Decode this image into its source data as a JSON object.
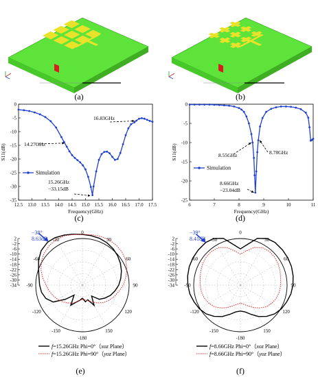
{
  "labels": {
    "a": "(a)",
    "b": "(b)",
    "c": "(c)",
    "d": "(d)",
    "e": "(e)",
    "f": "(f)"
  },
  "colors": {
    "substrate": "#5ee33a",
    "substrate_side": "#3fbf22",
    "patch": "#e8e22a",
    "feed": "#d61e1e",
    "sim": "#1f3fd0",
    "annotation": "#1f3fd0"
  },
  "chart_data": [
    {
      "id": "c",
      "type": "line",
      "xlabel": "Frequency(GHz)",
      "ylabel": "S11(dB)",
      "xlim": [
        12.5,
        17.5
      ],
      "ylim": [
        -35,
        0
      ],
      "xticks": [
        "12.5",
        "13.0",
        "13.5",
        "14.0",
        "14.5",
        "15.0",
        "15.5",
        "16.0",
        "16.5",
        "17.0",
        "17.5"
      ],
      "yticks": [
        "0",
        "-5",
        "-10",
        "-15",
        "-20",
        "-25",
        "-30",
        "-35"
      ],
      "legend": "Simulation",
      "series": [
        {
          "name": "Simulation",
          "x": [
            12.5,
            12.7,
            12.9,
            13.1,
            13.3,
            13.5,
            13.7,
            13.9,
            14.1,
            14.2,
            14.3,
            14.4,
            14.5,
            14.6,
            14.7,
            14.8,
            14.9,
            15.0,
            15.1,
            15.2,
            15.26,
            15.3,
            15.4,
            15.5,
            15.6,
            15.7,
            15.8,
            15.9,
            16.0,
            16.1,
            16.2,
            16.3,
            16.4,
            16.5,
            16.6,
            16.7,
            16.83,
            16.9,
            17.0,
            17.1,
            17.2,
            17.3,
            17.4,
            17.5
          ],
          "y": [
            -2.0,
            -2.2,
            -2.5,
            -3.0,
            -3.7,
            -4.7,
            -6.2,
            -8.5,
            -12.0,
            -13.8,
            -15.5,
            -17.2,
            -18.6,
            -19.6,
            -20.4,
            -21.2,
            -22.3,
            -23.8,
            -26.5,
            -30.2,
            -33.15,
            -30.0,
            -24.5,
            -20.3,
            -18.2,
            -17.4,
            -17.3,
            -17.9,
            -19.2,
            -20.3,
            -20.0,
            -17.8,
            -14.6,
            -11.3,
            -8.8,
            -7.3,
            -6.6,
            -6.0,
            -5.3,
            -5.1,
            -5.3,
            -5.7,
            -6.1,
            -6.4
          ]
        }
      ],
      "annotations": [
        {
          "text": "14.27GHz"
        },
        {
          "text": "16.83GHz"
        },
        {
          "text": "15.26GHz"
        },
        {
          "text": "−33.15dB"
        }
      ]
    },
    {
      "id": "d",
      "type": "line",
      "xlabel": "Frequency(GHz)",
      "ylabel": "S11(dB)",
      "xlim": [
        6,
        11
      ],
      "ylim": [
        -25,
        0
      ],
      "xticks": [
        "6",
        "7",
        "8",
        "9",
        "10",
        "11"
      ],
      "yticks": [
        "0",
        "-5",
        "-10",
        "-15",
        "-20",
        "-25"
      ],
      "legend": "Simulation",
      "series": [
        {
          "name": "Simulation",
          "x": [
            6.0,
            6.2,
            6.4,
            6.6,
            6.8,
            7.0,
            7.2,
            7.4,
            7.6,
            7.8,
            8.0,
            8.1,
            8.2,
            8.3,
            8.4,
            8.5,
            8.55,
            8.6,
            8.63,
            8.66,
            8.7,
            8.74,
            8.78,
            8.85,
            8.95,
            9.1,
            9.3,
            9.5,
            9.7,
            9.9,
            10.1,
            10.3,
            10.5,
            10.7,
            10.8,
            10.85,
            10.9,
            10.95,
            11.0
          ],
          "y": [
            -0.1,
            -0.1,
            -0.1,
            -0.1,
            -0.1,
            -0.15,
            -0.2,
            -0.3,
            -0.4,
            -0.6,
            -1.0,
            -1.4,
            -2.0,
            -3.2,
            -5.0,
            -7.8,
            -10.0,
            -14.0,
            -18.5,
            -23.04,
            -17.5,
            -12.5,
            -9.4,
            -5.8,
            -3.6,
            -2.0,
            -1.2,
            -0.8,
            -0.6,
            -0.6,
            -0.7,
            -0.9,
            -1.3,
            -2.2,
            -3.5,
            -6.0,
            -9.5,
            -9.3,
            -9.0
          ]
        }
      ],
      "annotations": [
        {
          "text": "8.55GHz"
        },
        {
          "text": "8.78GHz"
        },
        {
          "text": "8.66GHz"
        },
        {
          "text": "−23.04dB"
        }
      ]
    },
    {
      "id": "e",
      "type": "polar",
      "rlim": [
        -34,
        2
      ],
      "rticks": [
        "2",
        "-2",
        "-6",
        "-10",
        "-14",
        "-18",
        "-22",
        "-26",
        "-30",
        "-34"
      ],
      "angle_ticks": [
        "0",
        "30",
        "60",
        "90",
        "120",
        "150",
        "-180",
        "-150",
        "-120",
        "-90",
        "-60",
        "-30"
      ],
      "peak_text": [
        "−38°",
        "8.63dB"
      ],
      "series": [
        {
          "name": "f=15.26GHz Phi=0° (xoz Plane)",
          "style": "solid",
          "angles": [
            -180,
            -170,
            -160,
            -150,
            -140,
            -130,
            -120,
            -110,
            -100,
            -90,
            -80,
            -70,
            -60,
            -50,
            -40,
            -38,
            -30,
            -20,
            -10,
            0,
            10,
            20,
            30,
            40,
            50,
            60,
            70,
            80,
            90,
            100,
            110,
            120,
            130,
            140,
            150,
            160,
            170,
            180
          ],
          "gains": [
            -24,
            -22,
            -20,
            -16,
            -24,
            -17,
            -8,
            -4,
            -2,
            -1,
            0,
            2,
            5,
            7.5,
            8.5,
            8.63,
            8.3,
            7.2,
            6.0,
            5.2,
            4.8,
            4.5,
            3.8,
            2.8,
            1.4,
            -0.2,
            -2,
            -4,
            -6,
            -8.5,
            -11,
            -14,
            -17,
            -23,
            -16,
            -22,
            -21,
            -24
          ]
        },
        {
          "name": "f=15.26GHz Phi=90° (yoz Plane)",
          "style": "dotted",
          "angles": [
            -180,
            -170,
            -160,
            -150,
            -140,
            -130,
            -120,
            -110,
            -100,
            -90,
            -80,
            -70,
            -60,
            -50,
            -40,
            -30,
            -20,
            -10,
            0,
            10,
            20,
            30,
            40,
            50,
            60,
            70,
            80,
            90,
            100,
            110,
            120,
            130,
            140,
            150,
            160,
            170,
            180
          ],
          "gains": [
            -23,
            -22,
            -20,
            -18,
            -16,
            -14,
            -12,
            -10,
            -8,
            -6,
            -3,
            0,
            2.5,
            4.5,
            5.8,
            6.6,
            6.5,
            5.8,
            5.2,
            5.5,
            6.2,
            6.6,
            6.4,
            5.8,
            4.5,
            2.5,
            0,
            -2.5,
            -5.5,
            -8,
            -10.5,
            -13,
            -16,
            -19,
            -21,
            -22.5,
            -23
          ]
        }
      ],
      "legend": [
        {
          "italic": "f",
          "text": "=15.26GHz   Phi=0°（",
          "plane": "xoz",
          "tail": " Plane）"
        },
        {
          "italic": "f",
          "text": "=15.26GHz   Phi=90°（",
          "plane": "yoz",
          "tail": " Plane）"
        }
      ]
    },
    {
      "id": "f",
      "type": "polar",
      "rlim": [
        -34,
        2
      ],
      "rticks": [
        "2",
        "-2",
        "-6",
        "-10",
        "-14",
        "-18",
        "-22",
        "-26",
        "-30",
        "-34"
      ],
      "angle_ticks": [
        "0",
        "30",
        "60",
        "90",
        "120",
        "150",
        "-180",
        "-150",
        "-120",
        "-90",
        "-60",
        "-30"
      ],
      "peak_text": [
        "−39°",
        "8.41dB"
      ],
      "series": [
        {
          "name": "f=8.66GHz Phi=0° (xoz Plane)",
          "style": "solid",
          "angles": [
            -180,
            -170,
            -160,
            -150,
            -140,
            -130,
            -120,
            -110,
            -100,
            -90,
            -80,
            -70,
            -60,
            -50,
            -39,
            -30,
            -20,
            -10,
            0,
            10,
            20,
            30,
            39,
            50,
            60,
            70,
            80,
            90,
            100,
            110,
            120,
            130,
            140,
            150,
            160,
            170,
            180
          ],
          "gains": [
            -14,
            -13,
            -10,
            -6,
            -2.5,
            0.5,
            2.5,
            4.0,
            5.5,
            6.5,
            7.3,
            7.9,
            8.2,
            8.35,
            8.41,
            7.5,
            4.5,
            -2,
            -6,
            -2,
            4.5,
            7.5,
            8.41,
            8.35,
            8.2,
            7.9,
            7.3,
            6.5,
            5.5,
            4.0,
            2.5,
            0.5,
            -2.5,
            -6,
            -10,
            -13,
            -14
          ]
        },
        {
          "name": "f=8.66GHz Phi=90° (yoz Plane)",
          "style": "dotted",
          "angles": [
            -180,
            -170,
            -160,
            -150,
            -140,
            -130,
            -120,
            -110,
            -100,
            -90,
            -80,
            -70,
            -60,
            -50,
            -40,
            -30,
            -20,
            -10,
            0,
            10,
            20,
            30,
            40,
            50,
            60,
            70,
            80,
            90,
            100,
            110,
            120,
            130,
            140,
            150,
            160,
            170,
            180
          ],
          "gains": [
            -20,
            -19,
            -17,
            -14,
            -11,
            -8,
            -6,
            -4.5,
            -3.5,
            -3,
            -2.5,
            -1.5,
            -0.5,
            0.2,
            0.3,
            -0.5,
            -3,
            -7,
            -10,
            -7,
            -3,
            -0.5,
            0.3,
            0.2,
            -0.5,
            -1.5,
            -2.5,
            -3,
            -3.5,
            -4.5,
            -6,
            -8,
            -11,
            -14,
            -17,
            -19,
            -20
          ]
        }
      ],
      "legend": [
        {
          "italic": "f",
          "text": "=8.66GHz   Phi=0°（",
          "plane": "xoz",
          "tail": " Plane）"
        },
        {
          "italic": "f",
          "text": "=8.66GHz   Phi=90°（",
          "plane": "yoz",
          "tail": " Plane）"
        }
      ]
    }
  ]
}
